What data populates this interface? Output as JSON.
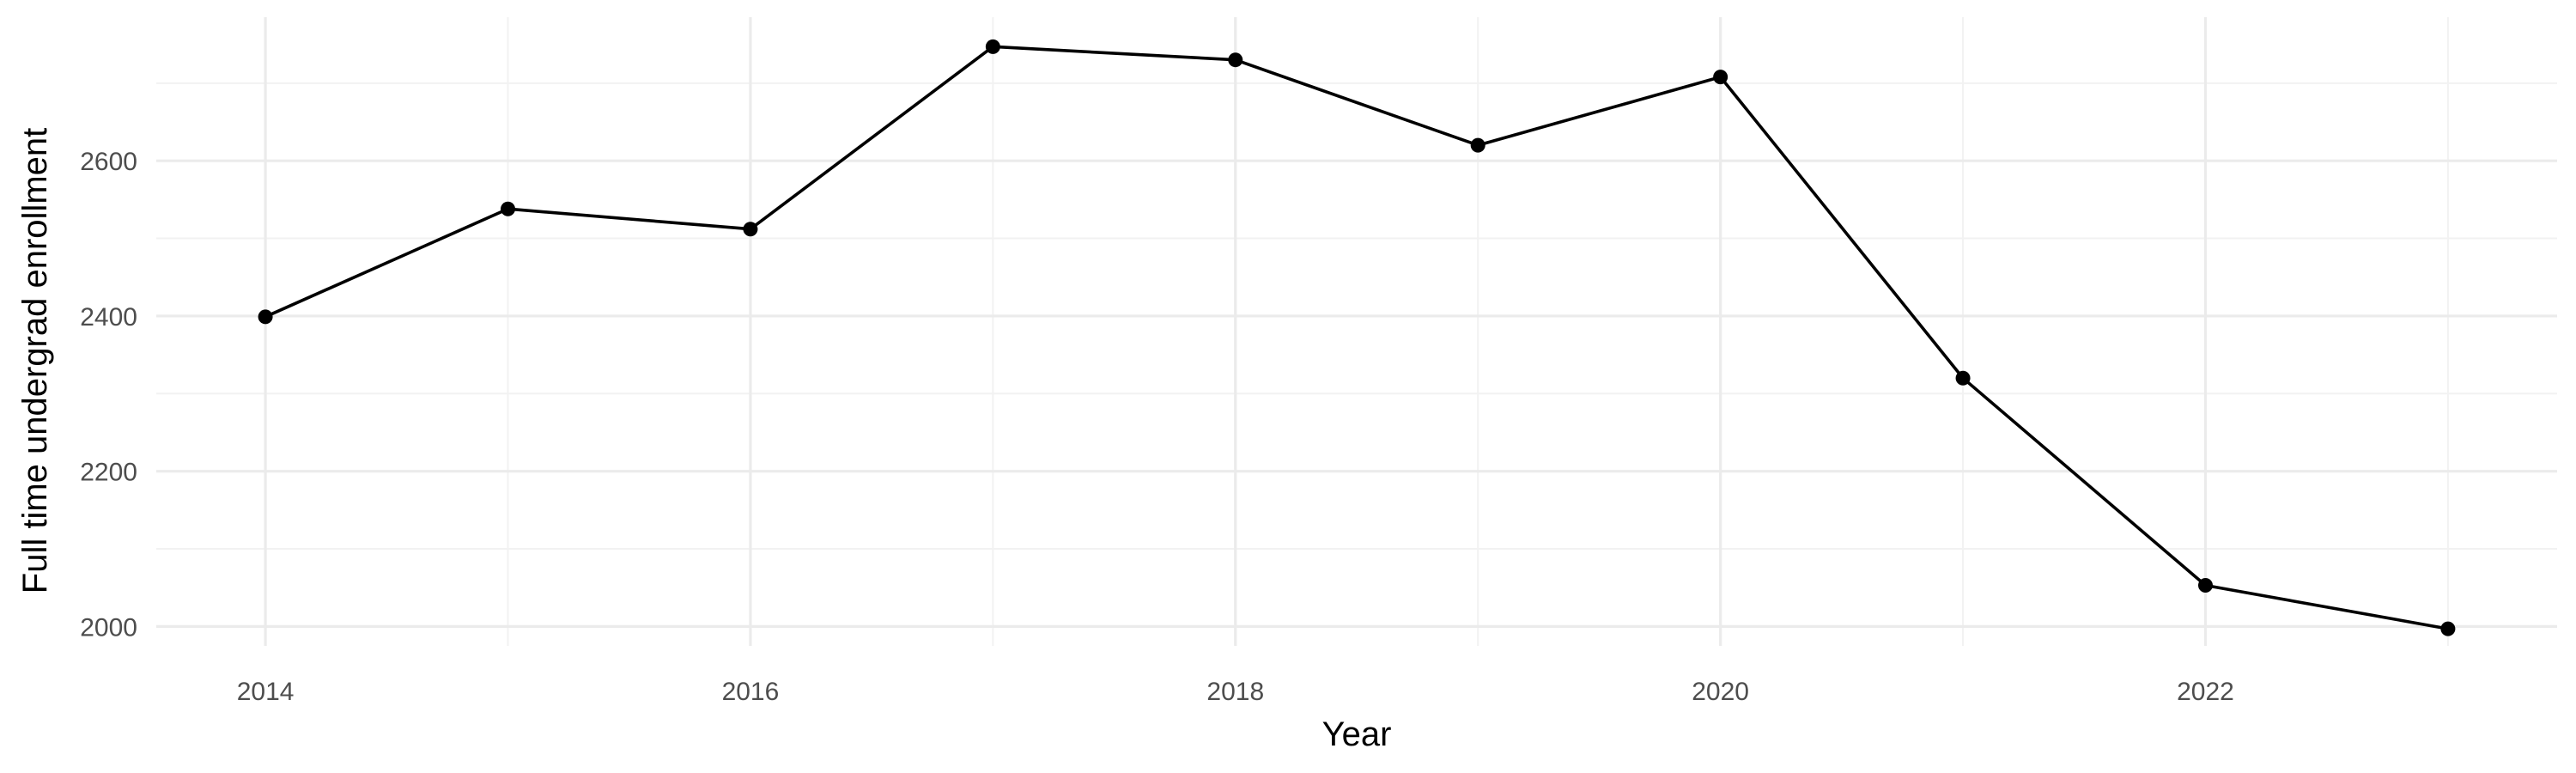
{
  "chart_data": {
    "type": "line",
    "title": "",
    "xlabel": "Year",
    "ylabel": "Full time undergrad enrollment",
    "x": [
      2014,
      2015,
      2016,
      2017,
      2018,
      2019,
      2020,
      2021,
      2022,
      2023
    ],
    "series": [
      {
        "values": [
          2399,
          2538,
          2512,
          2747,
          2730,
          2620,
          2708,
          2320,
          2053,
          1997
        ],
        "color": "#000000"
      }
    ],
    "xlim": [
      2013.55,
      2023.45
    ],
    "ylim": [
      1975,
      2785
    ],
    "x_ticks": [
      2014,
      2016,
      2018,
      2020,
      2022
    ],
    "x_tick_labels": [
      "2014",
      "2016",
      "2018",
      "2020",
      "2022"
    ],
    "x_minor_ticks": [
      2015,
      2017,
      2019,
      2021,
      2023
    ],
    "y_ticks": [
      2000,
      2200,
      2400,
      2600
    ],
    "y_tick_labels": [
      "2000",
      "2200",
      "2400",
      "2600"
    ],
    "y_minor_ticks": [
      2100,
      2300,
      2500,
      2700
    ],
    "grid": true,
    "legend": "none",
    "markers": true
  }
}
